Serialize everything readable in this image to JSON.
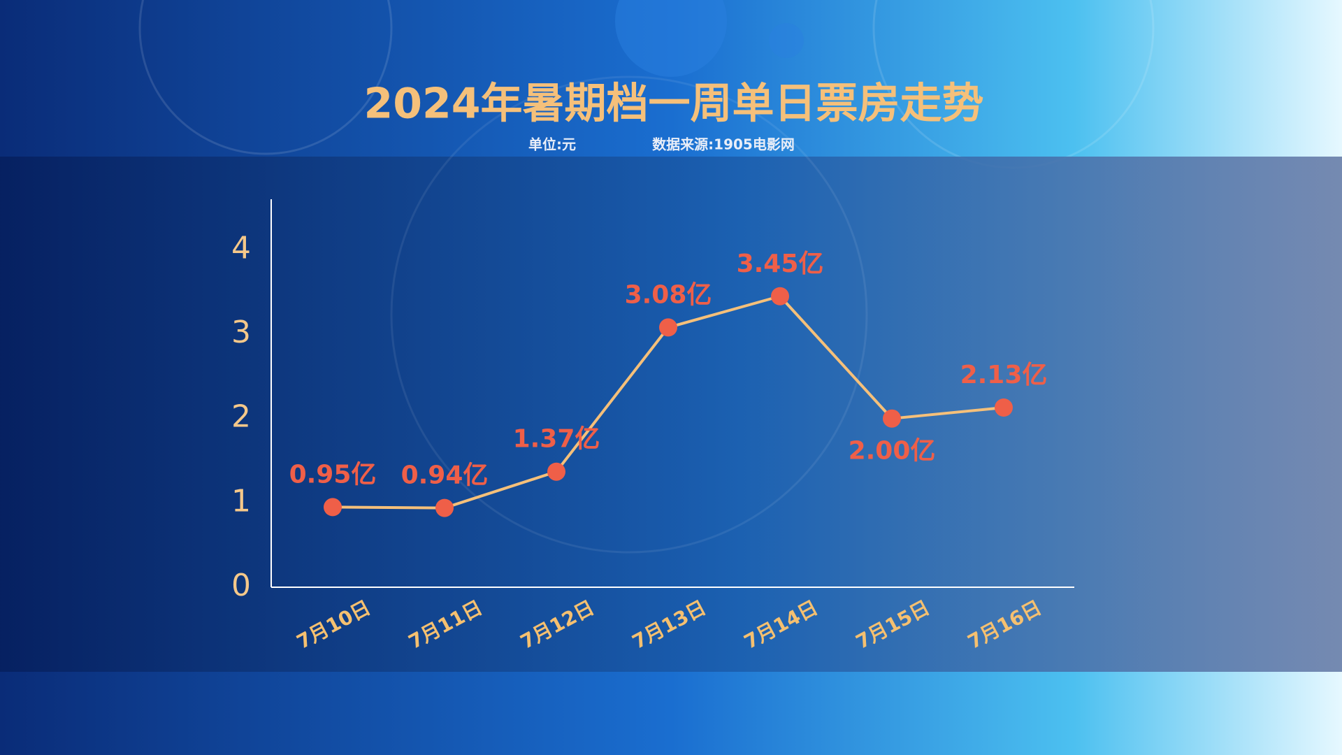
{
  "chart_data": {
    "type": "line",
    "title": "2024年暑期档一周单日票房走势",
    "subtitle": [
      "单位:元",
      "数据来源:1905电影网"
    ],
    "categories": [
      "7月10日",
      "7月11日",
      "7月12日",
      "7月13日",
      "7月14日",
      "7月15日",
      "7月16日"
    ],
    "series": [
      {
        "color": "#f5c07a",
        "marker_color": "#ef5f48",
        "values": [
          0.95,
          0.94,
          1.37,
          3.08,
          3.45,
          2.0,
          2.13
        ],
        "value_labels": [
          "0.95亿",
          "0.94亿",
          "1.37亿",
          "3.08亿",
          "3.45亿",
          "2.00亿",
          "2.13亿"
        ]
      }
    ],
    "ylim": [
      0,
      4.6
    ],
    "yticks": [
      0,
      1,
      2,
      3,
      4
    ]
  }
}
